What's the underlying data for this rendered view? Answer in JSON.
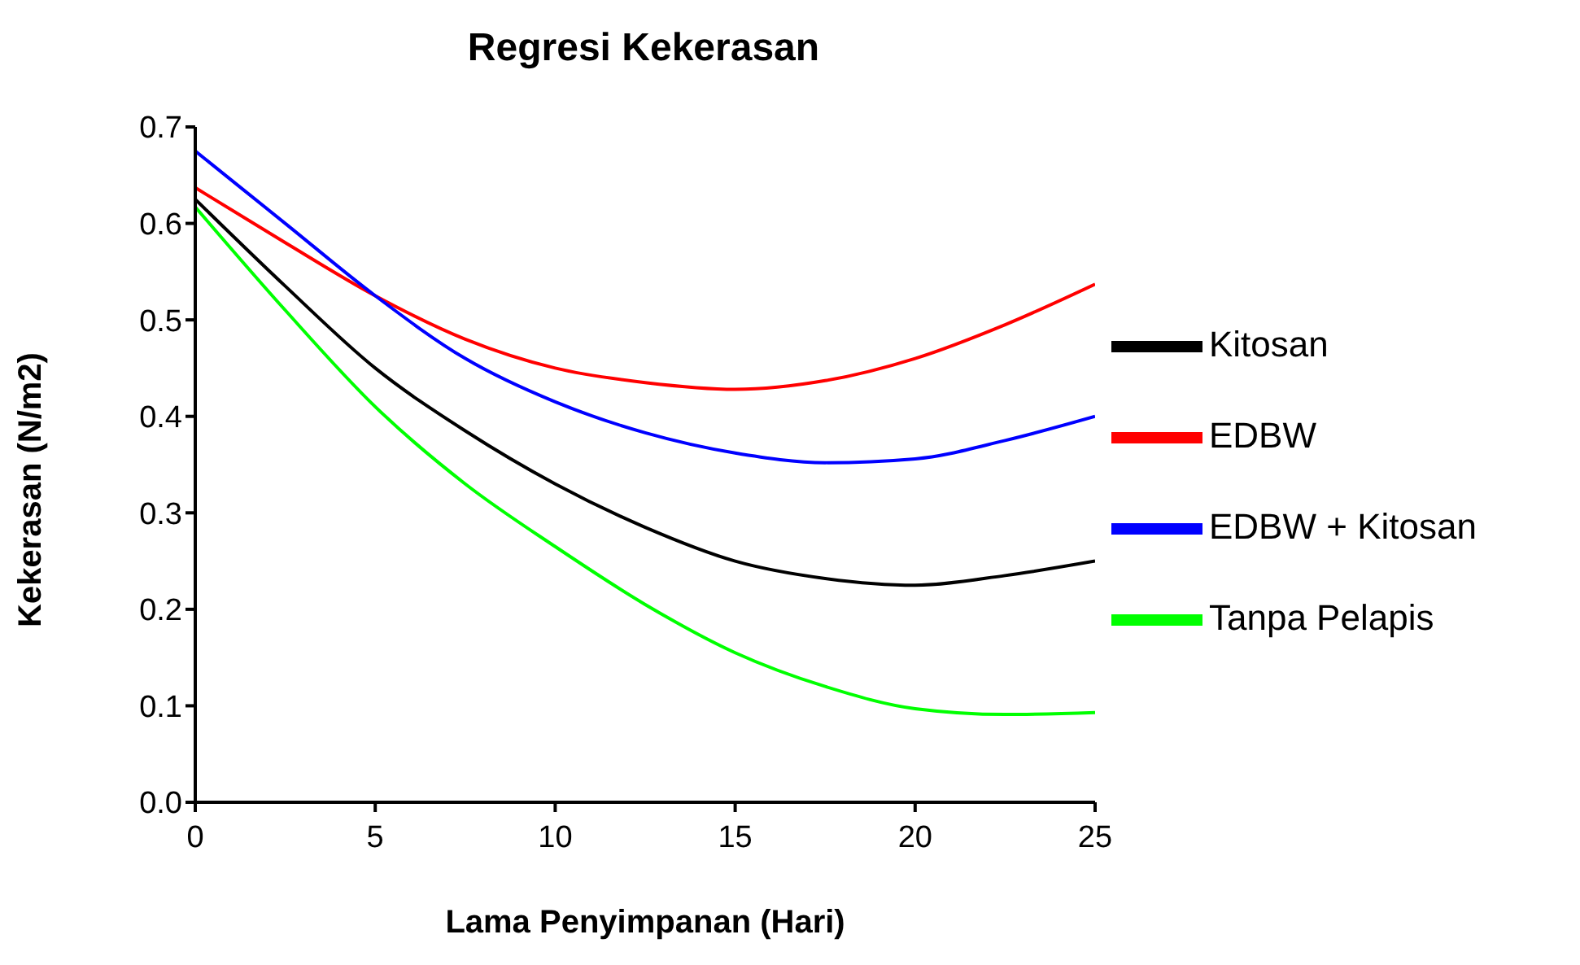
{
  "chart_data": {
    "type": "line",
    "title": "Regresi Kekerasan",
    "xlabel": "Lama Penyimpanan (Hari)",
    "ylabel": "Kekerasan (N/m2)",
    "x": [
      0,
      2.5,
      5,
      7.5,
      10,
      12.5,
      15,
      17.5,
      20,
      22.5,
      25
    ],
    "series": [
      {
        "name": "Kitosan",
        "color": "#000000",
        "values": [
          0.625,
          0.535,
          0.45,
          0.385,
          0.33,
          0.285,
          0.25,
          0.232,
          0.225,
          0.235,
          0.25
        ]
      },
      {
        "name": "EDBW",
        "color": "#ff0000",
        "values": [
          0.637,
          0.58,
          0.525,
          0.48,
          0.45,
          0.435,
          0.428,
          0.437,
          0.46,
          0.495,
          0.537
        ]
      },
      {
        "name": "EDBW + Kitosan",
        "color": "#0000ff",
        "values": [
          0.675,
          0.6,
          0.525,
          0.46,
          0.415,
          0.383,
          0.362,
          0.352,
          0.356,
          0.375,
          0.4
        ]
      },
      {
        "name": "Tanpa Pelapis",
        "color": "#00ff00",
        "values": [
          0.617,
          0.51,
          0.41,
          0.33,
          0.265,
          0.205,
          0.155,
          0.12,
          0.097,
          0.091,
          0.093
        ]
      }
    ],
    "xlim": [
      0,
      25
    ],
    "xticks": [
      0,
      5,
      10,
      15,
      20,
      25
    ],
    "ylim": [
      0,
      0.7
    ],
    "yticks": [
      {
        "value": 0,
        "label": "0.0"
      },
      0.1,
      0.2,
      0.3,
      0.4,
      0.5,
      0.6,
      0.7
    ],
    "grid": false,
    "legend": "right",
    "marker": "none",
    "line_style": "solid"
  }
}
